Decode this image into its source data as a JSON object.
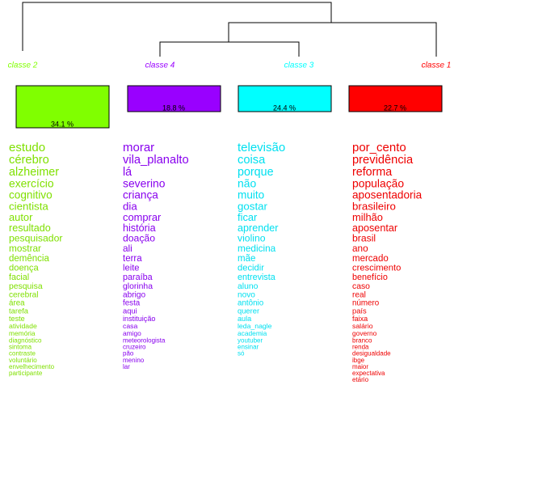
{
  "classes": [
    {
      "label": "classe 2",
      "percent": "34.1 %",
      "color": "#80ff00",
      "text_color": "#7fe000",
      "words": [
        "estudo",
        "cérebro",
        "alzheimer",
        "exercício",
        "cognitivo",
        "cientista",
        "autor",
        "resultado",
        "pesquisador",
        "mostrar",
        "demência",
        "doença",
        "facial",
        "pesquisa",
        "cerebral",
        "área",
        "tarefa",
        "teste",
        "atividade",
        "memória",
        "diagnóstico",
        "sintoma",
        "contraste",
        "voluntário",
        "envelhecimento",
        "participante"
      ]
    },
    {
      "label": "classe 4",
      "percent": "18.8 %",
      "color": "#9900ff",
      "text_color": "#8800ee",
      "words": [
        "morar",
        "vila_planalto",
        "lá",
        "severino",
        "criança",
        "dia",
        "comprar",
        "história",
        "doação",
        "ali",
        "terra",
        "leite",
        "paraíba",
        "glorinha",
        "abrigo",
        "festa",
        "aqui",
        "instituição",
        "casa",
        "amigo",
        "meteorologista",
        "cruzeiro",
        "pão",
        "menino",
        "lar"
      ]
    },
    {
      "label": "classe 3",
      "percent": "24.4 %",
      "color": "#00ffff",
      "text_color": "#00e0f0",
      "words": [
        "televisão",
        "coisa",
        "porque",
        "não",
        "muito",
        "gostar",
        "ficar",
        "aprender",
        "violino",
        "medicina",
        "mãe",
        "decidir",
        "entrevista",
        "aluno",
        "novo",
        "antônio",
        "querer",
        "aula",
        "leda_nagle",
        "academia",
        "youtuber",
        "ensinar",
        "só"
      ]
    },
    {
      "label": "classe 1",
      "percent": "22.7 %",
      "color": "#ff0000",
      "text_color": "#ee0000",
      "words": [
        "por_cento",
        "previdência",
        "reforma",
        "população",
        "aposentadoria",
        "brasileiro",
        "milhão",
        "aposentar",
        "brasil",
        "ano",
        "mercado",
        "crescimento",
        "benefício",
        "caso",
        "real",
        "número",
        "país",
        "faixa",
        "salário",
        "governo",
        "branco",
        "renda",
        "desigualdade",
        "ibge",
        "maior",
        "expectativa",
        "etário"
      ]
    }
  ]
}
